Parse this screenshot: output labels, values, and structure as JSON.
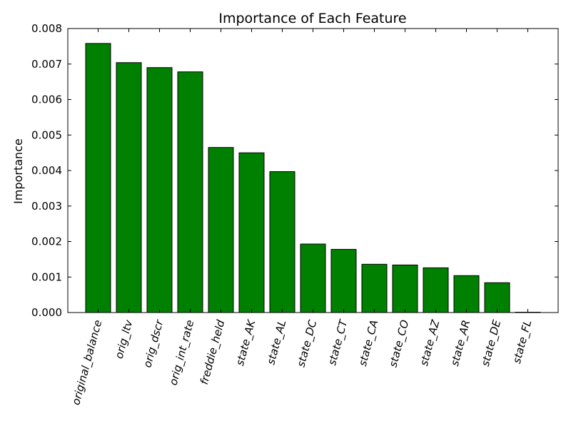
{
  "chart_data": {
    "type": "bar",
    "title": "Importance of Each Feature",
    "xlabel": "",
    "ylabel": "Importance",
    "ylim": [
      0,
      0.008
    ],
    "yticks": [
      "0.000",
      "0.001",
      "0.002",
      "0.003",
      "0.004",
      "0.005",
      "0.006",
      "0.007",
      "0.008"
    ],
    "categories": [
      "original_balance",
      "orig_ltv",
      "orig_dscr",
      "orig_int_rate",
      "freddie_held",
      "state_AK",
      "state_AL",
      "state_DC",
      "state_CT",
      "state_CA",
      "state_CO",
      "state_AZ",
      "state_AR",
      "state_DE",
      "state_FL"
    ],
    "values": [
      0.00758,
      0.00704,
      0.0069,
      0.00678,
      0.00465,
      0.0045,
      0.00397,
      0.00193,
      0.00178,
      0.00136,
      0.00134,
      0.00126,
      0.00104,
      0.00084,
      1e-05
    ],
    "grid": false,
    "bar_color": "#008000",
    "bar_edge_color": "#000000",
    "tick_label_rotation": "75deg",
    "tick_label_style": "italic"
  }
}
